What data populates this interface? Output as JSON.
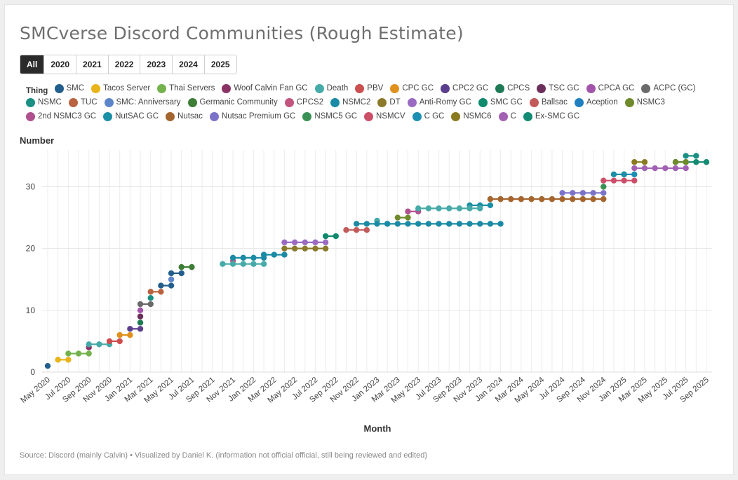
{
  "title": "SMCverse Discord Communities (Rough Estimate)",
  "tabs": [
    {
      "label": "All",
      "active": true
    },
    {
      "label": "2020",
      "active": false
    },
    {
      "label": "2021",
      "active": false
    },
    {
      "label": "2022",
      "active": false
    },
    {
      "label": "2023",
      "active": false
    },
    {
      "label": "2024",
      "active": false
    },
    {
      "label": "2025",
      "active": false
    }
  ],
  "legend_title": "Thing",
  "source": "Source: Discord (mainly Calvin) • Visualized by Daniel K. (information not official official, still being reviewed and edited)",
  "chart_data": {
    "type": "line",
    "title": "SMCverse Discord Communities (Rough Estimate)",
    "xlabel": "Month",
    "ylabel": "Number",
    "ylim": [
      0,
      35.5
    ],
    "yticks": [
      0,
      10,
      20,
      30
    ],
    "month_start": "2020-05",
    "month_count": 65,
    "xtick_labels": [
      "May 2020",
      "Jul 2020",
      "Sep 2020",
      "Nov 2020",
      "Jan 2021",
      "Mar 2021",
      "May 2021",
      "Jul 2021",
      "Sep 2021",
      "Nov 2021",
      "Jan 2022",
      "Mar 2022",
      "May 2022",
      "Jul 2022",
      "Sep 2022",
      "Nov 2022",
      "Jan 2023",
      "Mar 2023",
      "May 2023",
      "Jul 2023",
      "Sep 2023",
      "Nov 2023",
      "Jan 2024",
      "Mar 2024",
      "May 2024",
      "Jul 2024",
      "Sep 2024",
      "Nov 2024",
      "Jan 2025",
      "Mar 2025",
      "May 2025",
      "Jul 2025",
      "Sep 2025"
    ],
    "grid": true,
    "series": [
      {
        "name": "SMC",
        "color": "#235f8c",
        "months": [
          0
        ],
        "value": 1
      },
      {
        "name": "Tacos Server",
        "color": "#e8b41a",
        "months": [
          1,
          2
        ],
        "value": 2
      },
      {
        "name": "Thai Servers",
        "color": "#73b24d",
        "months": [
          2,
          3,
          4
        ],
        "value": 3
      },
      {
        "name": "Woof Calvin Fan GC",
        "color": "#8a3466",
        "months": [
          4
        ],
        "value": 4
      },
      {
        "name": "Death",
        "color": "#45aaa8",
        "months": [
          4,
          5,
          6
        ],
        "value": 4.5
      },
      {
        "name": "PBV",
        "color": "#cc4f4f",
        "months": [
          6,
          7
        ],
        "value": 5
      },
      {
        "name": "CPC GC",
        "color": "#e0901c",
        "months": [
          7,
          8
        ],
        "value": 6
      },
      {
        "name": "CPC2 GC",
        "color": "#5b3f8d",
        "months": [
          8,
          9
        ],
        "value": 7
      },
      {
        "name": "CPCS",
        "color": "#1d7a55",
        "months": [
          9
        ],
        "value": 8
      },
      {
        "name": "TSC GC",
        "color": "#6b2f5a",
        "months": [
          9
        ],
        "value": 9
      },
      {
        "name": "CPCA GC",
        "color": "#a254ab",
        "months": [
          9
        ],
        "value": 10
      },
      {
        "name": "ACPC (GC)",
        "color": "#6a6a6a",
        "months": [
          9,
          10
        ],
        "value": 11
      },
      {
        "name": "NSMC",
        "color": "#1a8f83",
        "months": [
          10
        ],
        "value": 12
      },
      {
        "name": "TUC",
        "color": "#b8623f",
        "months": [
          10,
          11
        ],
        "value": 13
      },
      {
        "name": "SMC: Anniversary",
        "color": "#5c86c9",
        "months": [
          12
        ],
        "value": 15
      },
      {
        "name": "Germanic Community",
        "color": "#3e7d36",
        "months": [
          13,
          14
        ],
        "value": 17
      },
      {
        "name": "CPCS2",
        "color": "#c2547e",
        "months": [
          18
        ],
        "value": 18
      },
      {
        "name": "NSMC2",
        "color": "#1a8aa5",
        "months": [
          21,
          22,
          23
        ],
        "value": 19
      },
      {
        "name": "DT",
        "color": "#8a7a2a",
        "months": [
          23,
          24,
          25,
          26,
          27
        ],
        "value": 20
      },
      {
        "name": "Anti-Romy GC",
        "color": "#9b6bc1",
        "months": [
          23,
          24,
          25,
          26,
          27
        ],
        "value": 21
      },
      {
        "name": "SMC GC",
        "color": "#0f8a6c",
        "months": [
          27,
          28
        ],
        "value": 22
      },
      {
        "name": "Ballsac",
        "color": "#c25a5a",
        "months": [
          29,
          30,
          31
        ],
        "value": 23
      },
      {
        "name": "Aception",
        "color": "#1f7fc1",
        "months": [
          33
        ],
        "value": 24
      },
      {
        "name": "NSMC3",
        "color": "#6f8a2a",
        "months": [
          34,
          35
        ],
        "value": 25
      },
      {
        "name": "2nd NSMC3 GC",
        "color": "#b0508f",
        "months": [
          35,
          36
        ],
        "value": 26
      },
      {
        "name": "NutSAC GC",
        "color": "#1b8fa6",
        "months": [
          41,
          42,
          43
        ],
        "value": 27
      },
      {
        "name": "Nutsac",
        "color": "#a5652e",
        "months": [
          43,
          44,
          45,
          46,
          47,
          48,
          49,
          50,
          51,
          52,
          53,
          54
        ],
        "value": 28
      },
      {
        "name": "Nutsac Premium GC",
        "color": "#7a73c9",
        "months": [
          50,
          51,
          52,
          53,
          54
        ],
        "value": 29
      },
      {
        "name": "NSMC5 GC",
        "color": "#3a9055",
        "months": [
          54
        ],
        "value": 30
      },
      {
        "name": "NSMCV",
        "color": "#cc4f6a",
        "months": [
          54,
          55,
          56,
          57
        ],
        "value": 31
      },
      {
        "name": "C GC",
        "color": "#1d8fb3",
        "months": [
          56,
          57
        ],
        "value": 32
      },
      {
        "name": "NSMC6",
        "color": "#8a7a1f",
        "months": [
          57,
          58
        ],
        "value": 34
      },
      {
        "name": "C",
        "color": "#a261b3",
        "months": [
          57,
          58,
          59,
          60,
          61,
          62
        ],
        "value": 33
      },
      {
        "name": "Ex-SMC GC",
        "color": "#138a73",
        "months": [
          61,
          62,
          63,
          64
        ],
        "value": 34
      },
      {
        "name": "Death",
        "color": "#45aaa8",
        "months": [
          17,
          18,
          19,
          20,
          21
        ],
        "value": 17.5,
        "continued": true
      },
      {
        "name": "NSMC2",
        "color": "#1a8aa5",
        "months": [
          18,
          19,
          20,
          21
        ],
        "value": 18.5,
        "continued": true
      },
      {
        "name": "Death",
        "color": "#45aaa8",
        "months": [
          32
        ],
        "value": 24.5,
        "continued": true
      },
      {
        "name": "NSMC2",
        "color": "#1a8aa5",
        "months": [
          30,
          31,
          32,
          33,
          34,
          35,
          36,
          37,
          38,
          39,
          40,
          41,
          42,
          43,
          44
        ],
        "value": 24,
        "continued": true
      },
      {
        "name": "Death",
        "color": "#45aaa8",
        "months": [
          36,
          37,
          38,
          39,
          40,
          41,
          42
        ],
        "value": 26.5,
        "continued": true
      },
      {
        "name": "SMC",
        "color": "#235f8c",
        "months": [
          12,
          13
        ],
        "value": 16,
        "continued": true
      },
      {
        "name": "SMC",
        "color": "#235f8c",
        "months": [
          11,
          12
        ],
        "value": 14,
        "continued": true
      },
      {
        "name": "NSMC",
        "color": "#1a8f83",
        "months": [
          62,
          63
        ],
        "value": 35,
        "continued": true
      },
      {
        "name": "NutSAC GC",
        "color": "#1b8fa6",
        "months": [
          55,
          56
        ],
        "value": 32,
        "continued": true
      },
      {
        "name": "NSMC3",
        "color": "#6f8a2a",
        "months": [
          61,
          62
        ],
        "value": 34,
        "continued": true
      }
    ]
  },
  "legend_items": [
    {
      "name": "SMC",
      "color": "#235f8c"
    },
    {
      "name": "Tacos Server",
      "color": "#e8b41a"
    },
    {
      "name": "Thai Servers",
      "color": "#73b24d"
    },
    {
      "name": "Woof Calvin Fan GC",
      "color": "#8a3466"
    },
    {
      "name": "Death",
      "color": "#45aaa8"
    },
    {
      "name": "PBV",
      "color": "#cc4f4f"
    },
    {
      "name": "CPC GC",
      "color": "#e0901c"
    },
    {
      "name": "CPC2 GC",
      "color": "#5b3f8d"
    },
    {
      "name": "CPCS",
      "color": "#1d7a55"
    },
    {
      "name": "TSC GC",
      "color": "#6b2f5a"
    },
    {
      "name": "CPCA GC",
      "color": "#a254ab"
    },
    {
      "name": "ACPC (GC)",
      "color": "#6a6a6a"
    },
    {
      "name": "NSMC",
      "color": "#1a8f83"
    },
    {
      "name": "TUC",
      "color": "#b8623f"
    },
    {
      "name": "SMC: Anniversary",
      "color": "#5c86c9"
    },
    {
      "name": "Germanic Community",
      "color": "#3e7d36"
    },
    {
      "name": "CPCS2",
      "color": "#c2547e"
    },
    {
      "name": "NSMC2",
      "color": "#1a8aa5"
    },
    {
      "name": "DT",
      "color": "#8a7a2a"
    },
    {
      "name": "Anti-Romy GC",
      "color": "#9b6bc1"
    },
    {
      "name": "SMC GC",
      "color": "#0f8a6c"
    },
    {
      "name": "Ballsac",
      "color": "#c25a5a"
    },
    {
      "name": "Aception",
      "color": "#1f7fc1"
    },
    {
      "name": "NSMC3",
      "color": "#6f8a2a"
    },
    {
      "name": "2nd NSMC3 GC",
      "color": "#b0508f"
    },
    {
      "name": "NutSAC GC",
      "color": "#1b8fa6"
    },
    {
      "name": "Nutsac",
      "color": "#a5652e"
    },
    {
      "name": "Nutsac Premium GC",
      "color": "#7a73c9"
    },
    {
      "name": "NSMC5 GC",
      "color": "#3a9055"
    },
    {
      "name": "NSMCV",
      "color": "#cc4f6a"
    },
    {
      "name": "C GC",
      "color": "#1d8fb3"
    },
    {
      "name": "NSMC6",
      "color": "#8a7a1f"
    },
    {
      "name": "C",
      "color": "#a261b3"
    },
    {
      "name": "Ex-SMC GC",
      "color": "#138a73"
    }
  ]
}
